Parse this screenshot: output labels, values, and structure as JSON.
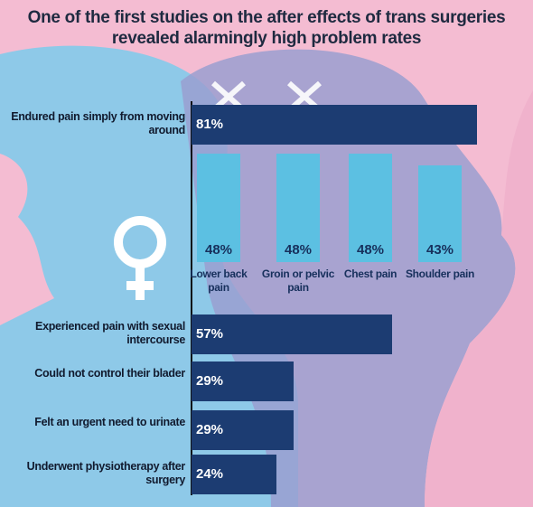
{
  "chart_data": [
    {
      "type": "hbar",
      "title": "One of the first studies on the after effects of trans surgeries revealed alarmingly high problem rates",
      "categories": [
        "Endured pain simply from moving around",
        "Experienced pain with sexual intercourse",
        "Could not control their blader",
        "Felt an urgent need to urinate",
        "Underwent physiotherapy after surgery"
      ],
      "values": [
        81,
        57,
        29,
        29,
        24
      ],
      "value_labels": [
        "81%",
        "57%",
        "29%",
        "29%",
        "24%"
      ],
      "color": "#1c3c72"
    },
    {
      "type": "vbar",
      "categories": [
        "Lower back pain",
        "Groin or pelvic pain",
        "Chest pain",
        "Shoulder pain"
      ],
      "values": [
        48,
        48,
        48,
        43
      ],
      "value_labels": [
        "48%",
        "48%",
        "48%",
        "43%"
      ],
      "color": "#5cc0e2"
    }
  ]
}
